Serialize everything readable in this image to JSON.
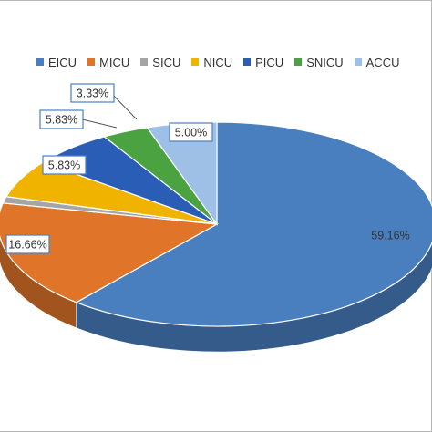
{
  "chart_data": {
    "type": "pie",
    "style": "3d",
    "legend_position": "top",
    "slices": [
      {
        "name": "EICU",
        "value": 59.16,
        "label": "59.16%",
        "color": "#4a7fbf"
      },
      {
        "name": "MICU",
        "value": 16.66,
        "label": "16.66%",
        "color": "#e0752a"
      },
      {
        "name": "SICU",
        "value": 1.0,
        "label": "",
        "color": "#a5a5a5"
      },
      {
        "name": "NICU",
        "value": 5.83,
        "label": "5.83%",
        "color": "#f0b400"
      },
      {
        "name": "PICU",
        "value": 5.83,
        "label": "5.83%",
        "color": "#2a5db5"
      },
      {
        "name": "SNICU",
        "value": 3.33,
        "label": "3.33%",
        "color": "#4aa240"
      },
      {
        "name": "ACCU",
        "value": 5.0,
        "label": "5.00%",
        "color": "#9ec0e6"
      }
    ]
  }
}
